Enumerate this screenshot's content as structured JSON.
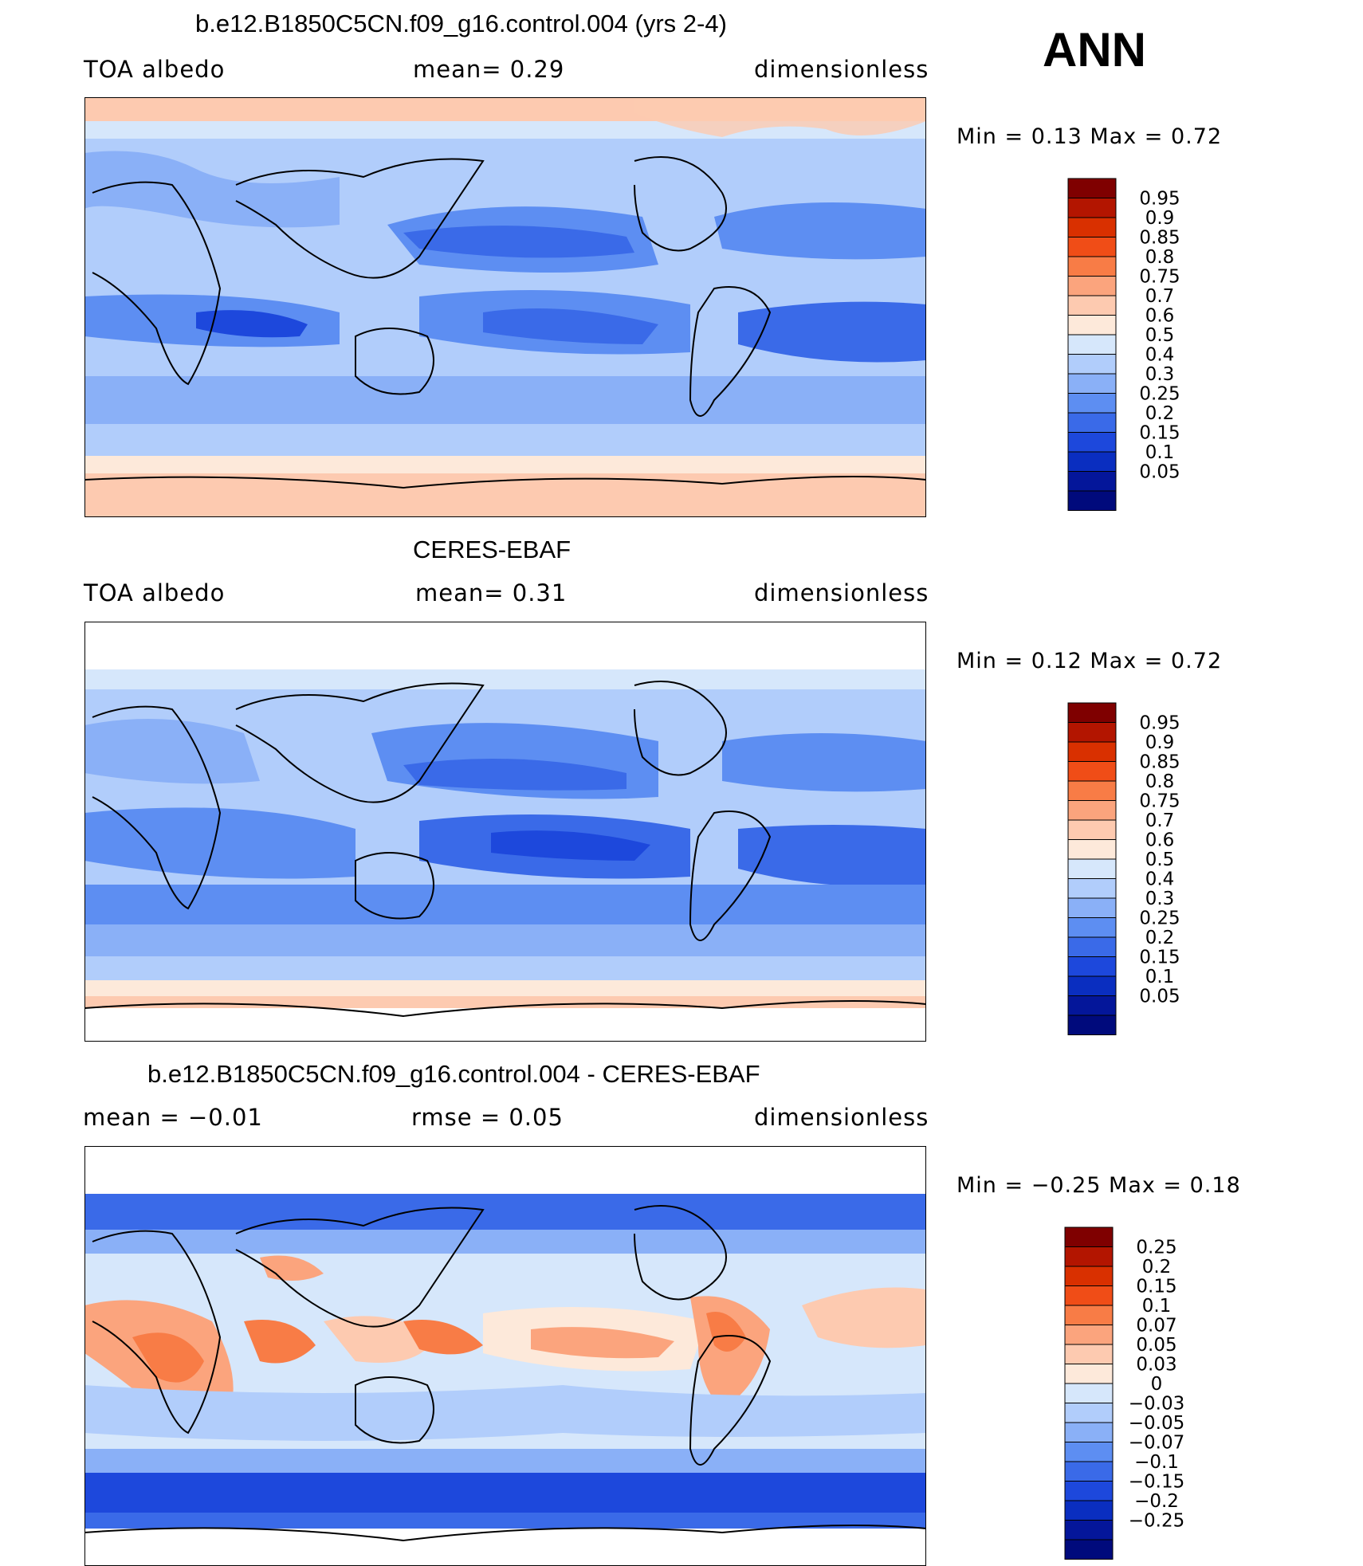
{
  "season": "ANN",
  "panels": [
    {
      "id": "model",
      "title": "b.e12.B1850C5CN.f09_g16.control.004 (yrs 2-4)",
      "left_label": "TOA albedo",
      "center_label": "mean=    0.29",
      "right_label": "dimensionless",
      "stats": "Min =     0.13  Max =      0.72",
      "colorbar": {
        "labels": [
          "0.95",
          "0.9",
          "0.85",
          "0.8",
          "0.75",
          "0.7",
          "0.6",
          "0.5",
          "0.4",
          "0.3",
          "0.25",
          "0.2",
          "0.15",
          "0.1",
          "0.05"
        ],
        "colors": [
          "#7f0000",
          "#b31500",
          "#d93000",
          "#f04d17",
          "#f87c46",
          "#fba47d",
          "#fdcab0",
          "#fde9da",
          "#d6e7fb",
          "#b1cdfb",
          "#8ab0f7",
          "#5d8ef2",
          "#3a6ae8",
          "#1d48dc",
          "#0a2ec0",
          "#04169a",
          "#000a7c"
        ]
      }
    },
    {
      "id": "obs",
      "title": "CERES-EBAF",
      "left_label": "TOA albedo",
      "center_label": "mean=    0.31",
      "right_label": "dimensionless",
      "stats": "Min =     0.12  Max =      0.72",
      "colorbar": {
        "labels": [
          "0.95",
          "0.9",
          "0.85",
          "0.8",
          "0.75",
          "0.7",
          "0.6",
          "0.5",
          "0.4",
          "0.3",
          "0.25",
          "0.2",
          "0.15",
          "0.1",
          "0.05"
        ],
        "colors": [
          "#7f0000",
          "#b31500",
          "#d93000",
          "#f04d17",
          "#f87c46",
          "#fba47d",
          "#fdcab0",
          "#fde9da",
          "#d6e7fb",
          "#b1cdfb",
          "#8ab0f7",
          "#5d8ef2",
          "#3a6ae8",
          "#1d48dc",
          "#0a2ec0",
          "#04169a",
          "#000a7c"
        ]
      }
    },
    {
      "id": "diff",
      "title": "b.e12.B1850C5CN.f09_g16.control.004 - CERES-EBAF",
      "left_label": "mean =   −0.01",
      "center_label": "rmse =    0.05",
      "right_label": "dimensionless",
      "stats": "Min =   −0.25  Max =     0.18",
      "colorbar": {
        "labels": [
          "0.25",
          "0.2",
          "0.15",
          "0.1",
          "0.07",
          "0.05",
          "0.03",
          "0",
          "−0.03",
          "−0.05",
          "−0.07",
          "−0.1",
          "−0.15",
          "−0.2",
          "−0.25"
        ],
        "colors": [
          "#7f0000",
          "#b31500",
          "#d93000",
          "#f04d17",
          "#f87c46",
          "#fba47d",
          "#fdcab0",
          "#fde9da",
          "#d6e7fb",
          "#b1cdfb",
          "#8ab0f7",
          "#5d8ef2",
          "#3a6ae8",
          "#1d48dc",
          "#0a2ec0",
          "#04169a",
          "#000a7c"
        ]
      }
    }
  ],
  "chart_data": [
    {
      "type": "heatmap",
      "title": "b.e12.B1850C5CN.f09_g16.control.004 (yrs 2-4)",
      "variable": "TOA albedo",
      "units": "dimensionless",
      "mean": 0.29,
      "min": 0.13,
      "max": 0.72,
      "levels": [
        0.05,
        0.1,
        0.15,
        0.2,
        0.25,
        0.3,
        0.4,
        0.5,
        0.6,
        0.7,
        0.75,
        0.8,
        0.85,
        0.9,
        0.95
      ]
    },
    {
      "type": "heatmap",
      "title": "CERES-EBAF",
      "variable": "TOA albedo",
      "units": "dimensionless",
      "mean": 0.31,
      "min": 0.12,
      "max": 0.72,
      "levels": [
        0.05,
        0.1,
        0.15,
        0.2,
        0.25,
        0.3,
        0.4,
        0.5,
        0.6,
        0.7,
        0.75,
        0.8,
        0.85,
        0.9,
        0.95
      ]
    },
    {
      "type": "heatmap",
      "title": "b.e12.B1850C5CN.f09_g16.control.004 - CERES-EBAF",
      "units": "dimensionless",
      "mean": -0.01,
      "rmse": 0.05,
      "min": -0.25,
      "max": 0.18,
      "levels": [
        -0.25,
        -0.2,
        -0.15,
        -0.1,
        -0.07,
        -0.05,
        -0.03,
        0,
        0.03,
        0.05,
        0.07,
        0.1,
        0.15,
        0.2,
        0.25
      ]
    }
  ]
}
